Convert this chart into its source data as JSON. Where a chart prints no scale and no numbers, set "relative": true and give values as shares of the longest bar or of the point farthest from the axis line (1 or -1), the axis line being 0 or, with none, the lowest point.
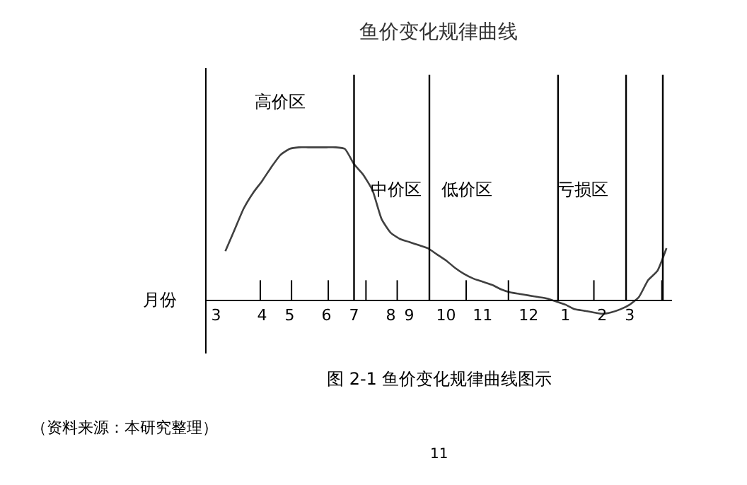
{
  "chart_data": {
    "type": "line",
    "title": "鱼价变化规律曲线",
    "xlabel": "月份",
    "relative": true,
    "categories": [
      "3",
      null,
      null,
      null,
      null,
      "4",
      null,
      null,
      "5",
      null,
      null,
      null,
      "6",
      null,
      null,
      "7",
      null,
      null,
      null,
      "8",
      null,
      "9",
      null,
      null,
      null,
      "10",
      null,
      null,
      null,
      "11",
      null,
      null,
      null,
      null,
      "12",
      null,
      null,
      null,
      "1",
      null,
      null,
      null,
      "2",
      null,
      null,
      "3",
      null,
      null,
      null,
      null
    ],
    "series": [
      {
        "color": "#404040",
        "values": [
          null,
          0.32,
          0.46,
          0.6,
          0.7,
          0.78,
          0.87,
          0.95,
          0.99,
          1.0,
          1.0,
          1.0,
          1.0,
          1.0,
          0.99,
          0.89,
          0.82,
          0.72,
          0.53,
          0.44,
          0.4,
          0.38,
          0.36,
          0.34,
          0.3,
          0.26,
          0.21,
          0.17,
          0.14,
          0.12,
          0.1,
          0.07,
          0.05,
          0.04,
          0.03,
          0.02,
          0.01,
          -0.01,
          -0.03,
          -0.06,
          -0.07,
          -0.08,
          -0.09,
          -0.08,
          -0.06,
          -0.03,
          0.02,
          0.13,
          0.19,
          0.34
        ]
      }
    ],
    "annotations": [
      "高价区",
      "中价区",
      "低价区",
      "亏损区",
      "图 2-1 鱼价变化规律曲线图示",
      "（资料来源：本研究整理）",
      "11"
    ],
    "grid": false,
    "marker": "none",
    "line_style": "solid"
  }
}
